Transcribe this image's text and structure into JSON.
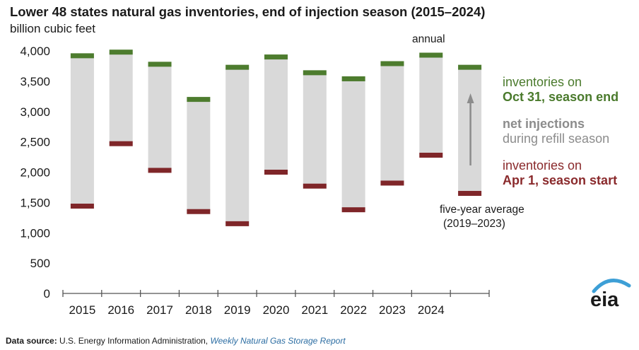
{
  "header": {
    "title": "Lower 48 states natural gas inventories, end of injection season (2015–2024)",
    "subtitle": "billion cubic feet"
  },
  "annotations": {
    "annual": "annual",
    "five_year_line1": "five-year average",
    "five_year_line2": "(2019–2023)"
  },
  "legend": {
    "oct_line1": "inventories on",
    "oct_line2": "Oct 31, season end",
    "net_line1": "net injections",
    "net_line2": "during refill season",
    "apr_line1": "inventories on",
    "apr_line2": "Apr 1, season start"
  },
  "footer": {
    "source_label": "Data source:",
    "source_text": "U.S. Energy Information Administration,",
    "publication": "Weekly Natural Gas Storage Report"
  },
  "logo": {
    "text": "eia"
  },
  "colors": {
    "season_end": "#4d7c2e",
    "net_injections": "#d9d9d9",
    "season_start": "#7f2629",
    "arrow": "#8c8c8c",
    "logo_arc": "#3d9fd6"
  },
  "chart_data": {
    "type": "bar",
    "subtype": "floating-bar",
    "ylabel": "billion cubic feet",
    "ylim": [
      0,
      4000
    ],
    "yticks": [
      0,
      500,
      1000,
      1500,
      2000,
      2500,
      3000,
      3500,
      4000
    ],
    "ytick_labels": [
      "0",
      "500",
      "1,000",
      "1,500",
      "2,000",
      "2,500",
      "3,000",
      "3,500",
      "4,000"
    ],
    "categories": [
      "2015",
      "2016",
      "2017",
      "2018",
      "2019",
      "2020",
      "2021",
      "2022",
      "2023",
      "2024",
      ""
    ],
    "series": [
      {
        "name": "inventories on Apr 1, season start",
        "values": [
          1440,
          2470,
          2030,
          1350,
          1150,
          2000,
          1770,
          1380,
          1820,
          2280,
          1650
        ]
      },
      {
        "name": "inventories on Oct 31, season end",
        "values": [
          3920,
          3980,
          3780,
          3200,
          3730,
          3900,
          3640,
          3540,
          3790,
          3930,
          3730
        ]
      }
    ],
    "legend_position": "right",
    "grid": false
  }
}
